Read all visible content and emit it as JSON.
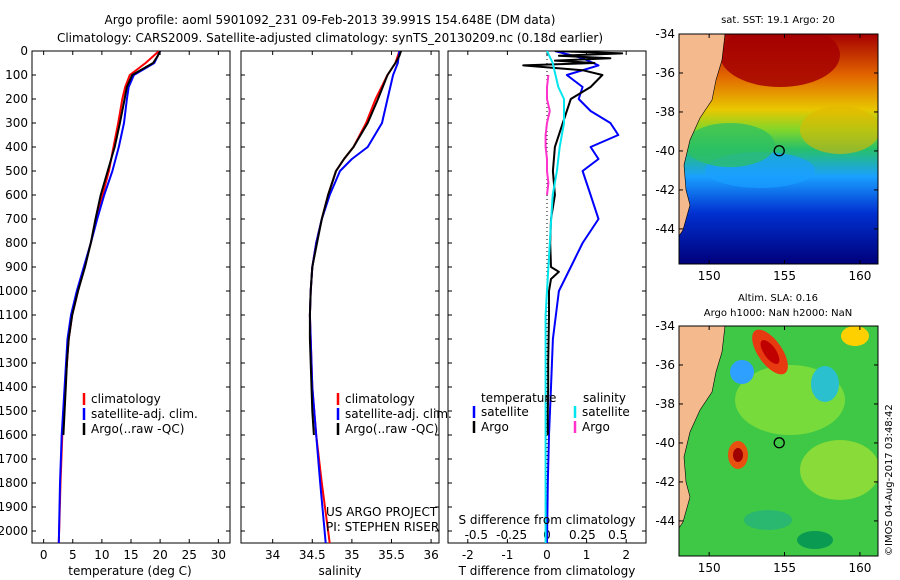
{
  "header": {
    "title_line1": "Argo profile: aoml 5901092_231 09-Feb-2013 39.991S 154.648E (DM data)",
    "title_line2": "Climatology: CARS2009. Satellite-adjusted climatology: synTS_20130209.nc (0.18d earlier)"
  },
  "credits": {
    "project": "US ARGO PROJECT",
    "pi": "PI: STEPHEN RISER",
    "stamp": "©IMOS 04-Aug-2017 03:48:42"
  },
  "colors": {
    "climatology": "#ff0000",
    "satellite": "#0000ff",
    "argo": "#000000",
    "salinity_sat": "#00e5ee",
    "salinity_argo": "#ff33cc",
    "land": "#f5b98e"
  },
  "legends": {
    "temperature_panel": [
      "climatology",
      "satellite-adj. clim.",
      "Argo(..raw -QC)"
    ],
    "salinity_panel": [
      "climatology",
      "satellite-adj. clim.",
      "Argo(..raw -QC)"
    ],
    "diff_panel": {
      "temperature_header": "temperature",
      "salinity_header": "salinity",
      "temperature_items": [
        "satellite",
        "Argo"
      ],
      "salinity_items": [
        "satellite",
        "Argo"
      ]
    }
  },
  "maps": {
    "sst": {
      "title": "sat. SST: 19.1  Argo: 20",
      "lat_ticks": [
        "-34",
        "-36",
        "-38",
        "-40",
        "-42",
        "-44"
      ],
      "lon_ticks": [
        "150",
        "155",
        "160"
      ]
    },
    "sla": {
      "title_line1": "Altim. SLA: 0.16",
      "title_line2": "Argo h1000: NaN h2000: NaN",
      "lat_ticks": [
        "-34",
        "-36",
        "-38",
        "-40",
        "-42",
        "-44"
      ],
      "lon_ticks": [
        "150",
        "155",
        "160"
      ]
    },
    "float_position": {
      "lon": 154.648,
      "lat": -39.991
    }
  },
  "chart_data": [
    {
      "type": "line",
      "title": "",
      "xlabel": "temperature (deg C)",
      "ylabel": "",
      "xlim": [
        -2,
        32
      ],
      "ylim": [
        2050,
        0
      ],
      "x_ticks": [
        "0",
        "5",
        "10",
        "15",
        "20",
        "25",
        "30"
      ],
      "y_ticks": [
        "0",
        "100",
        "200",
        "300",
        "400",
        "500",
        "600",
        "700",
        "800",
        "900",
        "1000",
        "1100",
        "1200",
        "1300",
        "1400",
        "1500",
        "1600",
        "1700",
        "1800",
        "1900",
        "2000"
      ],
      "series": [
        {
          "name": "climatology",
          "color": "#ff0000",
          "depth": [
            0,
            50,
            100,
            150,
            200,
            300,
            400,
            500,
            600,
            700,
            800,
            900,
            1000,
            1100,
            1200,
            1400,
            1600,
            1800,
            2050
          ],
          "values": [
            19.8,
            17.5,
            14.8,
            14.0,
            13.5,
            12.8,
            12.0,
            11.2,
            10.1,
            9.1,
            8.1,
            7.0,
            5.9,
            4.9,
            4.3,
            3.7,
            3.2,
            2.9,
            2.6
          ]
        },
        {
          "name": "satellite-adj. clim.",
          "color": "#0000ff",
          "depth": [
            0,
            50,
            100,
            150,
            200,
            300,
            400,
            500,
            600,
            700,
            800,
            900,
            1000,
            1100,
            1200,
            1400,
            1600,
            1800,
            2050
          ],
          "values": [
            20.0,
            19.0,
            15.5,
            14.6,
            14.3,
            13.8,
            12.9,
            11.8,
            10.4,
            9.2,
            8.1,
            6.9,
            5.7,
            4.7,
            4.1,
            3.6,
            3.1,
            2.8,
            2.6
          ]
        },
        {
          "name": "Argo(..raw -QC)",
          "color": "#000000",
          "depth": [
            0,
            20,
            50,
            100,
            150,
            200,
            300,
            400,
            500,
            600,
            700,
            800,
            900,
            1000,
            1100,
            1200,
            1300,
            1400,
            1500,
            1600
          ],
          "values": [
            20.0,
            19.6,
            18.8,
            15.2,
            14.3,
            13.9,
            13.1,
            12.2,
            11.0,
            9.8,
            8.9,
            8.1,
            7.1,
            5.9,
            4.9,
            4.3,
            4.0,
            3.8,
            3.6,
            3.4
          ]
        }
      ]
    },
    {
      "type": "line",
      "title": "",
      "xlabel": "salinity",
      "ylabel": "",
      "xlim": [
        33.6,
        36.1
      ],
      "ylim": [
        2050,
        0
      ],
      "x_ticks": [
        "34",
        "34.5",
        "35",
        "35.5",
        "36"
      ],
      "series": [
        {
          "name": "climatology",
          "color": "#ff0000",
          "depth": [
            0,
            50,
            100,
            200,
            300,
            400,
            450,
            500,
            600,
            700,
            800,
            900,
            1000,
            1100,
            1200,
            1400,
            1600,
            1800,
            2050
          ],
          "values": [
            35.6,
            35.55,
            35.45,
            35.3,
            35.18,
            35.02,
            34.9,
            34.8,
            34.7,
            34.62,
            34.55,
            34.5,
            34.48,
            34.47,
            34.48,
            34.5,
            34.55,
            34.62,
            34.72
          ]
        },
        {
          "name": "satellite-adj. clim.",
          "color": "#0000ff",
          "depth": [
            0,
            50,
            100,
            200,
            300,
            400,
            450,
            500,
            600,
            700,
            800,
            900,
            1000,
            1100,
            1200,
            1400,
            1600,
            1800,
            2050
          ],
          "values": [
            35.6,
            35.58,
            35.52,
            35.45,
            35.38,
            35.2,
            35.0,
            34.85,
            34.72,
            34.62,
            34.55,
            34.5,
            34.48,
            34.47,
            34.48,
            34.5,
            34.55,
            34.6,
            34.67
          ]
        },
        {
          "name": "Argo(..raw -QC)",
          "color": "#000000",
          "depth": [
            0,
            20,
            50,
            100,
            200,
            300,
            400,
            450,
            500,
            600,
            700,
            800,
            900,
            1000,
            1100,
            1200,
            1300,
            1400,
            1500,
            1600
          ],
          "values": [
            35.62,
            35.6,
            35.55,
            35.45,
            35.33,
            35.2,
            35.02,
            34.9,
            34.8,
            34.7,
            34.62,
            34.56,
            34.5,
            34.48,
            34.47,
            34.47,
            34.48,
            34.49,
            34.5,
            34.52
          ]
        }
      ]
    },
    {
      "type": "line",
      "title": "",
      "xlabel": "T difference from climatology",
      "x2label": "S difference from climatology",
      "xlim": [
        -2.5,
        2.5
      ],
      "x2lim": [
        -0.7,
        0.7
      ],
      "ylim": [
        2050,
        0
      ],
      "x_ticks": [
        "-2",
        "-1",
        "0",
        "1",
        "2"
      ],
      "x2_ticks": [
        "-0.5",
        "-0.25",
        "0",
        "0.25",
        "0.5"
      ],
      "series": [
        {
          "name": "temperature satellite",
          "color": "#0000ff",
          "axis": "T",
          "depth": [
            0,
            30,
            60,
            100,
            150,
            200,
            250,
            300,
            350,
            400,
            450,
            500,
            550,
            600,
            700,
            800,
            900,
            1000,
            1200,
            1400,
            1600,
            1800,
            2050
          ],
          "values": [
            0.2,
            0.9,
            1.3,
            0.5,
            0.9,
            0.8,
            1.1,
            1.6,
            1.8,
            1.1,
            1.3,
            0.9,
            1.0,
            1.1,
            1.3,
            0.9,
            0.6,
            0.3,
            0.15,
            0.1,
            0.05,
            0.02,
            0.0
          ]
        },
        {
          "name": "temperature Argo",
          "color": "#000000",
          "axis": "T",
          "depth": [
            0,
            10,
            20,
            30,
            40,
            50,
            60,
            80,
            100,
            150,
            200,
            250,
            300,
            400,
            500,
            600,
            700,
            800,
            900,
            920,
            950,
            1000,
            1100,
            1200,
            1300,
            1400,
            1500,
            1600
          ],
          "values": [
            0.2,
            1.9,
            0.3,
            1.6,
            0.2,
            1.2,
            -0.6,
            0.9,
            1.4,
            1.1,
            0.6,
            0.5,
            0.4,
            0.2,
            0.15,
            0.2,
            0.1,
            0.08,
            0.1,
            0.3,
            0.1,
            0.05,
            0.05,
            0.04,
            0.03,
            0.03,
            0.02,
            0.02
          ]
        },
        {
          "name": "salinity satellite",
          "color": "#00e5ee",
          "axis": "S",
          "depth": [
            0,
            50,
            100,
            150,
            200,
            300,
            400,
            500,
            600,
            700,
            800,
            900,
            1000,
            1100,
            1200,
            1400,
            1600,
            1800,
            2050
          ],
          "values": [
            0.0,
            0.04,
            0.06,
            0.08,
            0.12,
            0.12,
            0.09,
            0.07,
            0.04,
            0.03,
            0.02,
            0.01,
            0.0,
            -0.01,
            -0.01,
            -0.01,
            -0.01,
            -0.01,
            -0.01
          ]
        },
        {
          "name": "salinity Argo",
          "color": "#ff33cc",
          "axis": "S",
          "depth": [
            100,
            150,
            200,
            250,
            300,
            350,
            400,
            450,
            500,
            550,
            600
          ],
          "values": [
            0.01,
            0.0,
            0.0,
            0.02,
            0.0,
            -0.01,
            -0.01,
            0.0,
            0.0,
            0.01,
            0.0
          ]
        }
      ]
    }
  ]
}
